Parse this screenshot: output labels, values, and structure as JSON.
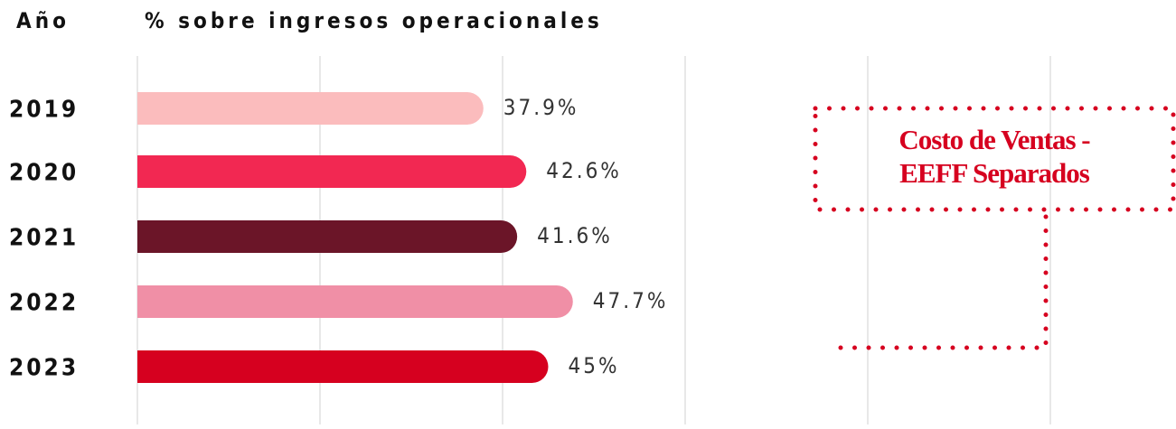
{
  "chart_data": {
    "type": "bar",
    "orientation": "horizontal",
    "y_label": "Año",
    "x_label": "% sobre ingresos operacionales",
    "categories": [
      "2019",
      "2020",
      "2021",
      "2022",
      "2023"
    ],
    "values": [
      37.9,
      42.6,
      41.6,
      47.7,
      45
    ],
    "value_labels": [
      "37.9%",
      "42.6%",
      "41.6%",
      "47.7%",
      "45%"
    ],
    "colors": [
      "#fbbcbd",
      "#f22852",
      "#6b1528",
      "#f08fa6",
      "#d6001f"
    ],
    "xlim": [
      0,
      100
    ],
    "xticks": [
      0,
      20,
      40,
      60,
      80,
      100
    ],
    "grid": true,
    "annotation": [
      "Costo de Ventas -",
      "EEFF Separados"
    ]
  }
}
